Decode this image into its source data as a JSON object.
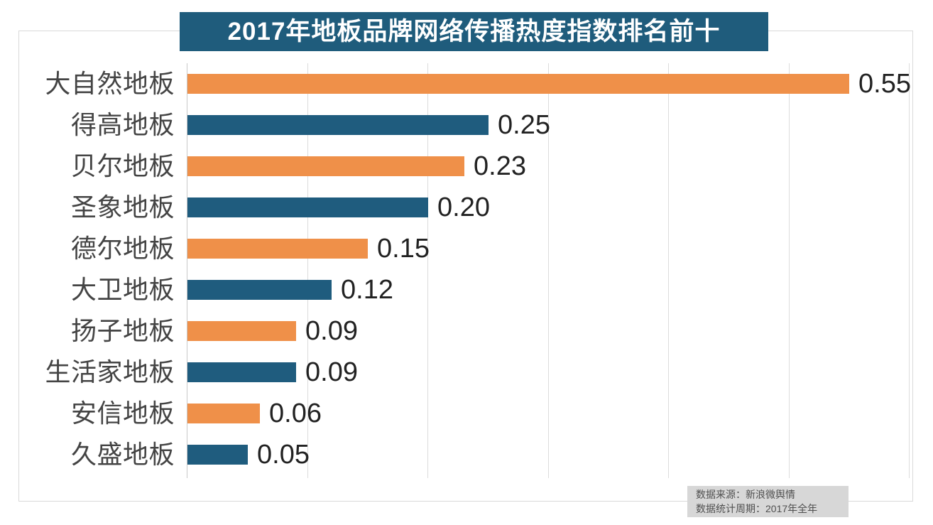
{
  "title": "2017年地板品牌网络传播热度指数排名前十",
  "chart_data": {
    "type": "bar",
    "orientation": "horizontal",
    "title": "2017年地板品牌网络传播热度指数排名前十",
    "categories": [
      "大自然地板",
      "得高地板",
      "贝尔地板",
      "圣象地板",
      "德尔地板",
      "大卫地板",
      "扬子地板",
      "生活家地板",
      "安信地板",
      "久盛地板"
    ],
    "values": [
      0.55,
      0.25,
      0.23,
      0.2,
      0.15,
      0.12,
      0.09,
      0.09,
      0.06,
      0.05
    ],
    "value_labels": [
      "0.55",
      "0.25",
      "0.23",
      "0.20",
      "0.15",
      "0.12",
      "0.09",
      "0.09",
      "0.06",
      "0.05"
    ],
    "xlabel": "",
    "ylabel": "",
    "xlim": [
      0,
      0.6
    ],
    "gridline_interval": 0.1,
    "grid": true,
    "legend": false,
    "bar_palette": [
      "#EF9049",
      "#1F5C7E"
    ]
  },
  "colors": {
    "banner_bg": "#1F5C7C",
    "banner_text": "#FFFFFF",
    "orange_bar": "#EF9049",
    "blue_bar": "#1F5C7E",
    "gridline": "#DCDCDC",
    "category_text": "#444444",
    "value_text": "#222222",
    "footer_bg": "#D7D7D7",
    "footer_text": "#4F4F4F"
  },
  "footer": {
    "source": "数据来源：新浪微舆情",
    "period": "数据统计周期：2017年全年"
  }
}
